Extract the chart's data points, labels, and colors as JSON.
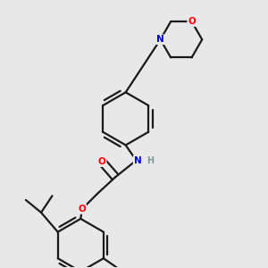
{
  "background_color": "#e8e8e8",
  "bond_color": "#1a1a1a",
  "bond_width": 1.6,
  "atom_colors": {
    "O": "#ff0000",
    "N": "#0000cc",
    "H": "#7a9a9a"
  },
  "font_size": 7.5,
  "figsize": [
    3.0,
    3.0
  ],
  "dpi": 100
}
